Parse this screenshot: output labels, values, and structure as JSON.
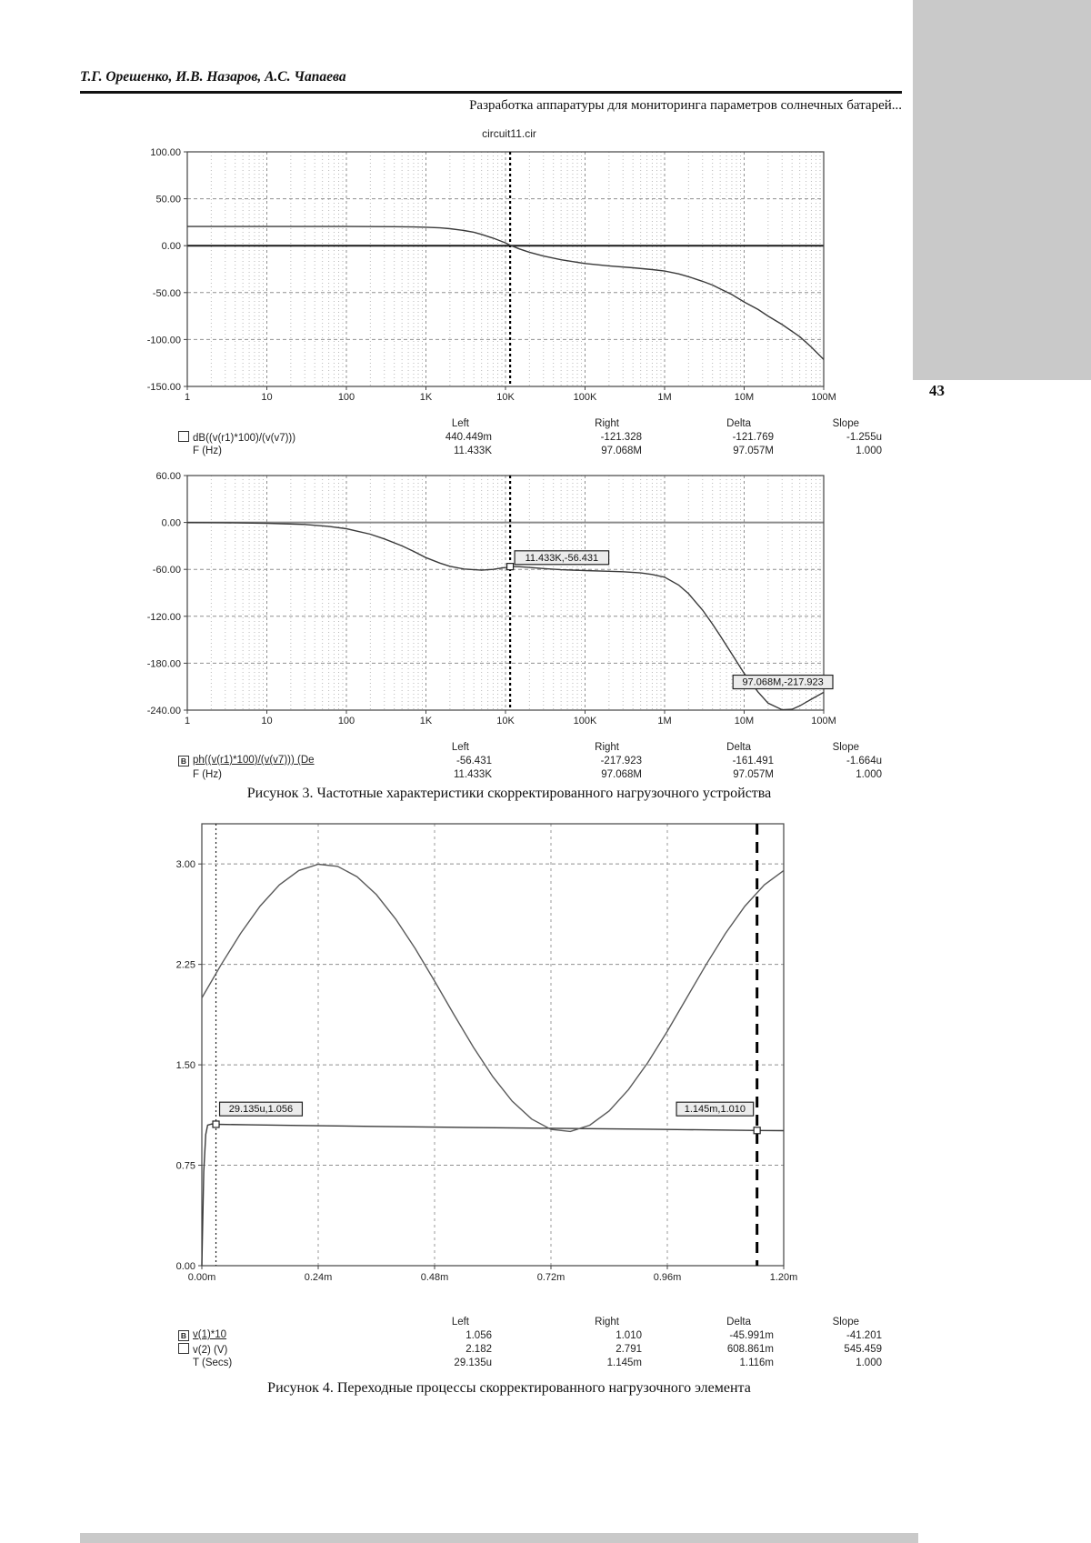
{
  "page": {
    "number": "43"
  },
  "header": {
    "authors": "Т.Г. Орешенко, И.В. Назаров, А.С. Чапаева",
    "running_title": "Разработка аппаратуры для мониторинга параметров солнечных батарей..."
  },
  "figure3": {
    "chart_title": "circuit11.cir",
    "caption": "Рисунок 3. Частотные характеристики скорректированного нагрузочного устройства"
  },
  "figure4": {
    "caption": "Рисунок 4. Переходные процессы скорректированного нагрузочного элемента"
  },
  "tables": {
    "magnitude": {
      "headers": [
        "Left",
        "Right",
        "Delta",
        "Slope"
      ],
      "rows": [
        {
          "icon": "checkbox",
          "label": "dB((v(r1)*100)/(v(v7)))",
          "underline": false,
          "values": [
            "440.449m",
            "-121.328",
            "-121.769",
            "-1.255u"
          ]
        },
        {
          "icon": "none",
          "label": "F (Hz)",
          "underline": false,
          "values": [
            "11.433K",
            "97.068M",
            "97.057M",
            "1.000"
          ]
        }
      ]
    },
    "phase": {
      "headers": [
        "Left",
        "Right",
        "Delta",
        "Slope"
      ],
      "rows": [
        {
          "icon": "B",
          "label": "ph((v(r1)*100)/(v(v7))) (De",
          "underline": true,
          "values": [
            "-56.431",
            "-217.923",
            "-161.491",
            "-1.664u"
          ]
        },
        {
          "icon": "none",
          "label": "F (Hz)",
          "underline": false,
          "values": [
            "11.433K",
            "97.068M",
            "97.057M",
            "1.000"
          ]
        }
      ]
    },
    "transient": {
      "headers": [
        "Left",
        "Right",
        "Delta",
        "Slope"
      ],
      "rows": [
        {
          "icon": "B",
          "label": "v(1)*10",
          "underline": true,
          "values": [
            "1.056",
            "1.010",
            "-45.991m",
            "-41.201"
          ]
        },
        {
          "icon": "checkbox",
          "label": "v(2) (V)",
          "underline": false,
          "values": [
            "2.182",
            "2.791",
            "608.861m",
            "545.459"
          ]
        },
        {
          "icon": "none",
          "label": "T (Secs)",
          "underline": false,
          "values": [
            "29.135u",
            "1.145m",
            "1.116m",
            "1.000"
          ]
        }
      ]
    }
  },
  "chart_data": [
    {
      "id": "magnitude",
      "type": "line",
      "title": "circuit11.cir",
      "x_scale": "log",
      "xlabel": "F (Hz)",
      "ylabel": "dB((v(r1)*100)/(v(v7)))",
      "xlim": [
        1,
        100000000.0
      ],
      "ylim": [
        -150,
        100
      ],
      "zero_at": 0,
      "xticks": [
        {
          "v": 1,
          "l": "1"
        },
        {
          "v": 10,
          "l": "10"
        },
        {
          "v": 100,
          "l": "100"
        },
        {
          "v": 1000,
          "l": "1K"
        },
        {
          "v": 10000,
          "l": "10K"
        },
        {
          "v": 100000,
          "l": "100K"
        },
        {
          "v": 1000000,
          "l": "1M"
        },
        {
          "v": 10000000,
          "l": "10M"
        },
        {
          "v": 100000000,
          "l": "100M"
        }
      ],
      "yticks": [
        {
          "v": 100,
          "l": "100.00"
        },
        {
          "v": 50,
          "l": "50.00"
        },
        {
          "v": 0,
          "l": "0.00"
        },
        {
          "v": -50,
          "l": "-50.00"
        },
        {
          "v": -100,
          "l": "-100.00"
        },
        {
          "v": -150,
          "l": "-150.00"
        }
      ],
      "cursors": [
        {
          "x": 11433,
          "style": "dotted"
        }
      ],
      "annotations": [],
      "handles": [],
      "series": [
        {
          "name": "dB((v(r1)*100)/(v(v7)))",
          "points": [
            [
              1,
              20.4
            ],
            [
              10,
              20.4
            ],
            [
              50,
              20.4
            ],
            [
              100,
              20.4
            ],
            [
              200,
              20.35
            ],
            [
              400,
              20.25
            ],
            [
              700,
              20.0
            ],
            [
              1000,
              19.7
            ],
            [
              1500,
              19.0
            ],
            [
              2000,
              18.1
            ],
            [
              3000,
              16.2
            ],
            [
              4000,
              14.3
            ],
            [
              5000,
              12.0
            ],
            [
              7000,
              8.0
            ],
            [
              10000,
              3.0
            ],
            [
              11433,
              0.44
            ],
            [
              15000,
              -3.5
            ],
            [
              20000,
              -7.0
            ],
            [
              30000,
              -11.0
            ],
            [
              50000,
              -15.0
            ],
            [
              70000,
              -17.0
            ],
            [
              100000,
              -19.0
            ],
            [
              200000,
              -21.5
            ],
            [
              400000,
              -23.5
            ],
            [
              700000,
              -25.5
            ],
            [
              1000000.0,
              -27.0
            ],
            [
              1500000.0,
              -30.0
            ],
            [
              2000000.0,
              -33.0
            ],
            [
              3000000.0,
              -38.0
            ],
            [
              4000000.0,
              -42.0
            ],
            [
              5000000.0,
              -46.0
            ],
            [
              7000000.0,
              -52.0
            ],
            [
              10000000.0,
              -60.0
            ],
            [
              15000000.0,
              -68.0
            ],
            [
              20000000.0,
              -75.0
            ],
            [
              30000000.0,
              -84.0
            ],
            [
              50000000.0,
              -97.0
            ],
            [
              70000000.0,
              -108.0
            ],
            [
              100000000.0,
              -121.328
            ]
          ]
        }
      ],
      "cursor_readout": {
        "left": {
          "f": "11.433K",
          "v": "440.449m"
        },
        "right": {
          "f": "97.068M",
          "v": "-121.328"
        }
      }
    },
    {
      "id": "phase",
      "type": "line",
      "x_scale": "log",
      "xlabel": "F (Hz)",
      "ylabel": "ph((v(r1)*100)/(v(v7))) (Degrees)",
      "xlim": [
        1,
        100000000.0
      ],
      "ylim": [
        -240,
        60
      ],
      "zero_at": 0,
      "xticks": [
        {
          "v": 1,
          "l": "1"
        },
        {
          "v": 10,
          "l": "10"
        },
        {
          "v": 100,
          "l": "100"
        },
        {
          "v": 1000,
          "l": "1K"
        },
        {
          "v": 10000,
          "l": "10K"
        },
        {
          "v": 100000,
          "l": "100K"
        },
        {
          "v": 1000000,
          "l": "1M"
        },
        {
          "v": 10000000,
          "l": "10M"
        },
        {
          "v": 100000000,
          "l": "100M"
        }
      ],
      "yticks": [
        {
          "v": 60,
          "l": "60.00"
        },
        {
          "v": 0,
          "l": "0.00"
        },
        {
          "v": -60,
          "l": "-60.00"
        },
        {
          "v": -120,
          "l": "-120.00"
        },
        {
          "v": -180,
          "l": "-180.00"
        },
        {
          "v": -240,
          "l": "-240.00"
        }
      ],
      "cursors": [
        {
          "x": 11433,
          "style": "dotted"
        }
      ],
      "annotations": [
        {
          "x": 11433,
          "y": -45,
          "dx": 5,
          "anchor": "left",
          "text": "11.433K,-56.431"
        },
        {
          "x": 100000000.0,
          "y": -204,
          "dx": 10,
          "anchor": "right",
          "text": "97.068M,-217.923"
        }
      ],
      "handles": [
        {
          "x": 11433,
          "y": -56.431
        }
      ],
      "series": [
        {
          "name": "ph((v(r1)*100)/(v(v7)))",
          "points": [
            [
              1,
              -0.1
            ],
            [
              3,
              -0.3
            ],
            [
              10,
              -1.0
            ],
            [
              30,
              -2.5
            ],
            [
              60,
              -5.0
            ],
            [
              100,
              -8.0
            ],
            [
              200,
              -15.0
            ],
            [
              300,
              -21.0
            ],
            [
              500,
              -30.0
            ],
            [
              700,
              -37.0
            ],
            [
              1000,
              -45.0
            ],
            [
              1500,
              -52.0
            ],
            [
              2000,
              -56.0
            ],
            [
              3000,
              -59.5
            ],
            [
              5000,
              -61.0
            ],
            [
              7000,
              -60.0
            ],
            [
              10000,
              -57.5
            ],
            [
              11433,
              -56.431
            ],
            [
              15000,
              -56.6
            ],
            [
              20000,
              -57.5
            ],
            [
              30000,
              -59.0
            ],
            [
              50000,
              -60.5
            ],
            [
              100000,
              -61.5
            ],
            [
              200000,
              -62.5
            ],
            [
              300000,
              -63.0
            ],
            [
              500000,
              -64.5
            ],
            [
              700000,
              -66.5
            ],
            [
              1000000.0,
              -70.0
            ],
            [
              1500000.0,
              -80.0
            ],
            [
              2000000.0,
              -91.0
            ],
            [
              3000000.0,
              -112.0
            ],
            [
              4000000.0,
              -130.0
            ],
            [
              5000000.0,
              -145.0
            ],
            [
              7000000.0,
              -168.0
            ],
            [
              10000000.0,
              -193.0
            ],
            [
              15000000.0,
              -217.0
            ],
            [
              20000000.0,
              -231.0
            ],
            [
              30000000.0,
              -239.5
            ],
            [
              40000000.0,
              -239.0
            ],
            [
              50000000.0,
              -234.5
            ],
            [
              70000000.0,
              -226.0
            ],
            [
              97068000.0,
              -217.923
            ],
            [
              100000000.0,
              -217.3
            ]
          ]
        }
      ],
      "cursor_readout": {
        "left": {
          "f": "11.433K",
          "v": "-56.431"
        },
        "right": {
          "f": "97.068M",
          "v": "-217.923"
        }
      }
    },
    {
      "id": "transient",
      "type": "line",
      "x_scale": "linear",
      "xlabel": "T (Secs)",
      "ylabel": "V",
      "xlim": [
        0,
        1.2
      ],
      "ylim": [
        0,
        3.3
      ],
      "xticks": [
        {
          "v": 0,
          "l": "0.00m"
        },
        {
          "v": 0.24,
          "l": "0.24m"
        },
        {
          "v": 0.48,
          "l": "0.48m"
        },
        {
          "v": 0.72,
          "l": "0.72m"
        },
        {
          "v": 0.96,
          "l": "0.96m"
        },
        {
          "v": 1.2,
          "l": "1.20m"
        }
      ],
      "yticks": [
        {
          "v": 0,
          "l": "0.00"
        },
        {
          "v": 0.75,
          "l": "0.75"
        },
        {
          "v": 1.5,
          "l": "1.50"
        },
        {
          "v": 2.25,
          "l": "2.25"
        },
        {
          "v": 3,
          "l": "3.00"
        }
      ],
      "cursors": [
        {
          "x": 0.029135,
          "style": "fine-dot"
        },
        {
          "x": 1.145,
          "style": "heavy-dash"
        }
      ],
      "annotations": [
        {
          "x": 0.029135,
          "y": 1.17,
          "dx": 4,
          "anchor": "left",
          "text": "29.135u,1.056"
        },
        {
          "x": 1.145,
          "y": 1.17,
          "dx": -4,
          "anchor": "right",
          "text": "1.145m,1.010"
        }
      ],
      "handles": [
        {
          "x": 0.029135,
          "y": 1.056
        },
        {
          "x": 1.145,
          "y": 1.01
        }
      ],
      "series": [
        {
          "name": "v(1)*10",
          "points": [
            [
              0,
              0
            ],
            [
              0.004,
              0.7
            ],
            [
              0.008,
              0.98
            ],
            [
              0.012,
              1.05
            ],
            [
              0.02,
              1.058
            ],
            [
              0.029135,
              1.056
            ],
            [
              0.1,
              1.052
            ],
            [
              0.2,
              1.047
            ],
            [
              0.35,
              1.04
            ],
            [
              0.5,
              1.034
            ],
            [
              0.7,
              1.027
            ],
            [
              0.9,
              1.02
            ],
            [
              1.0,
              1.016
            ],
            [
              1.145,
              1.01
            ],
            [
              1.2,
              1.008
            ]
          ]
        },
        {
          "name": "v(2) (V)",
          "points": [
            [
              0,
              2.0
            ],
            [
              0.04,
              2.249
            ],
            [
              0.08,
              2.482
            ],
            [
              0.12,
              2.685
            ],
            [
              0.16,
              2.844
            ],
            [
              0.2,
              2.951
            ],
            [
              0.24,
              2.998
            ],
            [
              0.28,
              2.982
            ],
            [
              0.32,
              2.905
            ],
            [
              0.36,
              2.771
            ],
            [
              0.4,
              2.588
            ],
            [
              0.44,
              2.368
            ],
            [
              0.48,
              2.125
            ],
            [
              0.52,
              1.875
            ],
            [
              0.56,
              1.632
            ],
            [
              0.6,
              1.412
            ],
            [
              0.64,
              1.229
            ],
            [
              0.68,
              1.095
            ],
            [
              0.72,
              1.018
            ],
            [
              0.76,
              1.002
            ],
            [
              0.8,
              1.049
            ],
            [
              0.84,
              1.156
            ],
            [
              0.88,
              1.315
            ],
            [
              0.92,
              1.518
            ],
            [
              0.96,
              1.751
            ],
            [
              1.0,
              2.0
            ],
            [
              1.04,
              2.249
            ],
            [
              1.08,
              2.482
            ],
            [
              1.12,
              2.685
            ],
            [
              1.16,
              2.844
            ],
            [
              1.2,
              2.951
            ]
          ]
        }
      ],
      "cursor_readout": {
        "left": {
          "t": "29.135u",
          "v1": "1.056",
          "v2": "2.182"
        },
        "right": {
          "t": "1.145m",
          "v1": "1.010",
          "v2": "2.791"
        }
      }
    }
  ]
}
